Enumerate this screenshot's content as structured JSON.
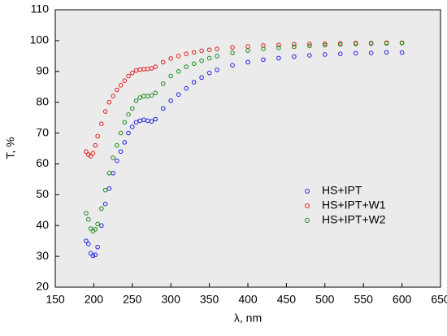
{
  "chart_data": {
    "type": "scatter",
    "x_label": "λ, nm",
    "y_label": "T, %",
    "xlim": [
      150,
      650
    ],
    "xticks": [
      150,
      200,
      250,
      300,
      350,
      400,
      450,
      500,
      550,
      600,
      650
    ],
    "ylim": [
      20,
      110
    ],
    "yticks": [
      20,
      30,
      40,
      50,
      60,
      70,
      80,
      90,
      100,
      110
    ],
    "grid": false,
    "legend_position": "right",
    "x": [
      190,
      193,
      196,
      199,
      202,
      205,
      210,
      215,
      220,
      225,
      230,
      235,
      240,
      245,
      250,
      255,
      260,
      265,
      270,
      275,
      280,
      290,
      300,
      310,
      320,
      330,
      340,
      350,
      360,
      380,
      400,
      420,
      440,
      460,
      480,
      500,
      520,
      540,
      560,
      580,
      600
    ],
    "series": [
      {
        "name": "HS+IPT",
        "color": "#1f1fe0",
        "values": [
          35,
          34,
          31,
          30.2,
          30.5,
          33,
          40,
          47,
          52,
          57,
          61,
          64,
          67,
          70,
          72,
          73.5,
          74,
          74.3,
          74,
          73.8,
          74.5,
          78,
          80.5,
          82.5,
          84.5,
          86.5,
          88,
          89.5,
          90.5,
          92,
          93,
          93.8,
          94.3,
          94.8,
          95.2,
          95.5,
          95.7,
          95.9,
          96,
          96.2,
          96.1
        ]
      },
      {
        "name": "HS+IPT+W1",
        "color": "#e01f1f",
        "values": [
          64,
          63,
          62.5,
          63.5,
          66,
          69,
          73,
          77,
          80,
          82,
          84,
          85.5,
          87,
          88.5,
          89.5,
          90.3,
          90.6,
          90.7,
          90.8,
          91,
          91.5,
          93,
          94.2,
          95,
          95.7,
          96.2,
          96.7,
          97,
          97.3,
          97.8,
          98.1,
          98.4,
          98.6,
          98.8,
          98.9,
          99,
          99.1,
          99.2,
          99.2,
          99.3,
          99.3
        ]
      },
      {
        "name": "HS+IPT+W2",
        "color": "#1a8a1a",
        "values": [
          44,
          42,
          39,
          38.2,
          38.8,
          40.5,
          45.5,
          51.5,
          57,
          62,
          66,
          70,
          73.5,
          76,
          78,
          80.5,
          81.5,
          82,
          82,
          82.2,
          83,
          86,
          88.5,
          90,
          91.5,
          92.5,
          93.5,
          94.3,
          95,
          96,
          96.8,
          97.3,
          97.7,
          98,
          98.3,
          98.5,
          98.7,
          98.9,
          99,
          99.1,
          99.2
        ]
      }
    ]
  }
}
